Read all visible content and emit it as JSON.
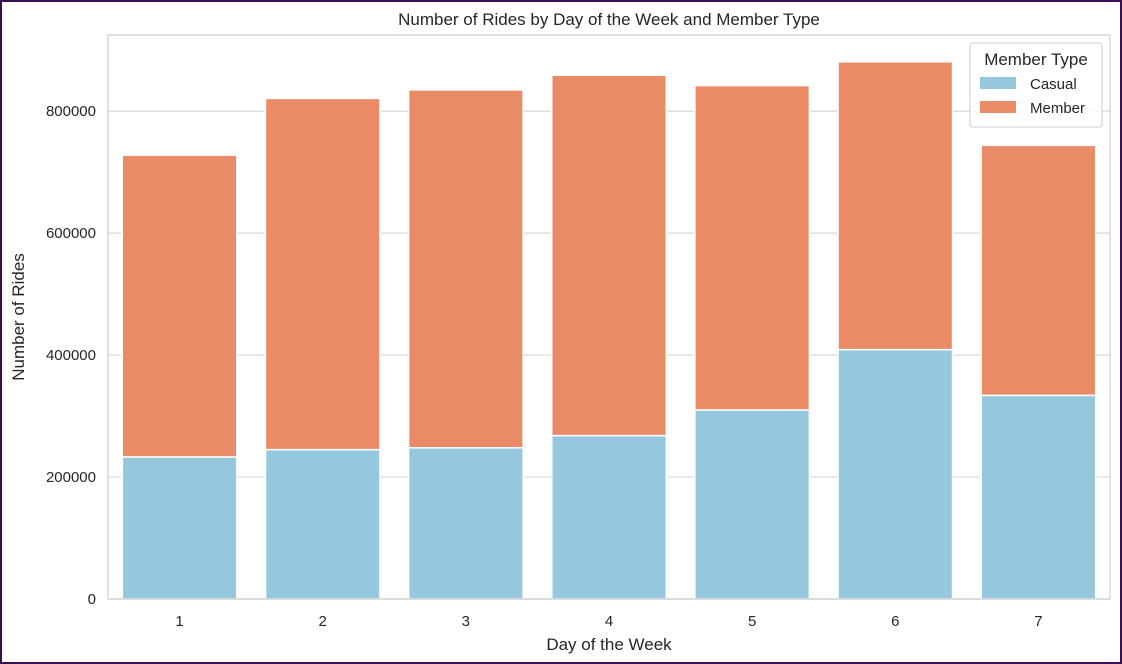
{
  "chart_data": {
    "type": "bar",
    "stacked": true,
    "title": "Number of Rides by Day of the Week and Member Type",
    "xlabel": "Day of the Week",
    "ylabel": "Number of Rides",
    "categories": [
      "1",
      "2",
      "3",
      "4",
      "5",
      "6",
      "7"
    ],
    "series": [
      {
        "name": "Casual",
        "color": "#96c8dd",
        "values": [
          233000,
          245000,
          248000,
          268000,
          310000,
          409000,
          334000
        ]
      },
      {
        "name": "Member",
        "color": "#ea8a66",
        "values": [
          495000,
          576000,
          587000,
          591000,
          532000,
          472000,
          410000
        ]
      }
    ],
    "ylim": [
      0,
      925000
    ],
    "yticks": [
      0,
      200000,
      400000,
      600000,
      800000
    ],
    "ytick_labels": [
      "0",
      "200000",
      "400000",
      "600000",
      "800000"
    ],
    "grid": "horizontal",
    "legend": {
      "title": "Member Type",
      "placement": "top-right"
    }
  }
}
